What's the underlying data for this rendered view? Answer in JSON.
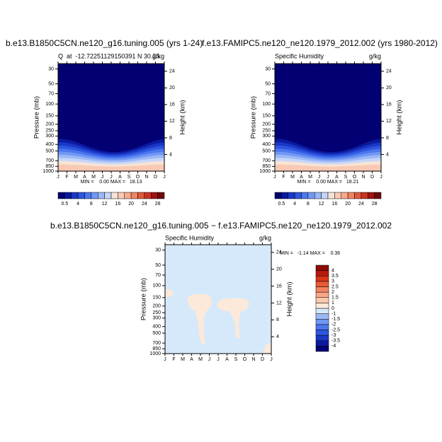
{
  "chart_data": [
    {
      "type": "contour",
      "title": "b.e13.B1850C5CN.ne120_g16.tuning.005 (yrs 1-24)",
      "subtitle_left": "Q  at  -12.72251129150391 N 30.25",
      "subtitle_right": "g/kg",
      "categories": [
        "J",
        "F",
        "M",
        "A",
        "M",
        "J",
        "J",
        "A",
        "S",
        "O",
        "N",
        "D",
        "J"
      ],
      "ylabel": "Pressure (mb)",
      "y2label": "Height (km)",
      "log_y": true,
      "ylim": [
        1000,
        25
      ],
      "yticks": [
        30,
        50,
        70,
        100,
        150,
        200,
        250,
        300,
        400,
        500,
        700,
        850,
        1000
      ],
      "y2ticks": [
        4,
        8,
        12,
        16,
        20,
        24
      ],
      "stats": "MIN =    0.00 MAX =   18.13",
      "colorbar": {
        "orientation": "horizontal",
        "colors": [
          "#020072",
          "#0a1a9e",
          "#1b37c6",
          "#2f56e0",
          "#4c78ee",
          "#7198f3",
          "#9cb8f6",
          "#c5d6f9",
          "#f7e3d5",
          "#f9c9b3",
          "#f6a98d",
          "#ef8463",
          "#e05a3d",
          "#c93422",
          "#a21213",
          "#6e0a0a"
        ],
        "labels": [
          0.5,
          4,
          8,
          12,
          16,
          20,
          24,
          28
        ]
      }
    },
    {
      "type": "contour",
      "title": "f.e13.FAMIPC5.ne120_ne120.1979_2012.002 (yrs 1980-2012)",
      "subtitle_left": "Specific Humidity",
      "subtitle_right": "g/kg",
      "categories": [
        "J",
        "F",
        "M",
        "A",
        "M",
        "J",
        "J",
        "A",
        "S",
        "O",
        "N",
        "D",
        "J"
      ],
      "ylabel": "Pressure (mb)",
      "y2label": "Height (km)",
      "log_y": true,
      "ylim": [
        1000,
        25
      ],
      "yticks": [
        30,
        50,
        70,
        100,
        150,
        200,
        250,
        300,
        400,
        500,
        700,
        850,
        1000
      ],
      "y2ticks": [
        4,
        8,
        12,
        16,
        20,
        24
      ],
      "stats": "MIN =    0.00 MAX =   18.21",
      "colorbar": {
        "orientation": "horizontal",
        "colors": [
          "#020072",
          "#0a1a9e",
          "#1b37c6",
          "#2f56e0",
          "#4c78ee",
          "#7198f3",
          "#9cb8f6",
          "#c5d6f9",
          "#f7e3d5",
          "#f9c9b3",
          "#f6a98d",
          "#ef8463",
          "#e05a3d",
          "#c93422",
          "#a21213",
          "#6e0a0a"
        ],
        "labels": [
          0.5,
          4,
          8,
          12,
          16,
          20,
          24,
          28
        ]
      }
    },
    {
      "type": "difference",
      "title": "b.e13.B1850C5CN.ne120_g16.tuning.005 − f.e13.FAMIPC5.ne120_ne120.1979_2012.002",
      "subtitle_left": "Specific Humidity",
      "subtitle_right": "g/kg",
      "categories": [
        "J",
        "F",
        "M",
        "A",
        "M",
        "J",
        "J",
        "A",
        "S",
        "O",
        "N",
        "D",
        "J"
      ],
      "ylabel": "Pressure (mb)",
      "y2label": "Height (km)",
      "log_y": true,
      "ylim": [
        1000,
        25
      ],
      "yticks": [
        30,
        50,
        70,
        100,
        150,
        200,
        250,
        300,
        400,
        500,
        700,
        850,
        1000
      ],
      "y2ticks": [
        4,
        8,
        12,
        16,
        20,
        24
      ],
      "stats": "MIN =   -1.14 MAX =    0.36",
      "colorbar": {
        "orientation": "vertical",
        "colors": [
          "#020072",
          "#0a1a9e",
          "#1b37c6",
          "#2f56e0",
          "#4c78ee",
          "#7198f3",
          "#9cb8f6",
          "#d6e9fb",
          "#fde9d9",
          "#fbc8ae",
          "#f8a787",
          "#f3835f",
          "#ea5b37",
          "#d93517",
          "#b8190d",
          "#8e0c08"
        ],
        "labels": [
          -4,
          -3.5,
          -3,
          -2.5,
          -2,
          -1.5,
          -1,
          0,
          1,
          1.5,
          2,
          2.5,
          3,
          3.5,
          4
        ]
      }
    }
  ]
}
